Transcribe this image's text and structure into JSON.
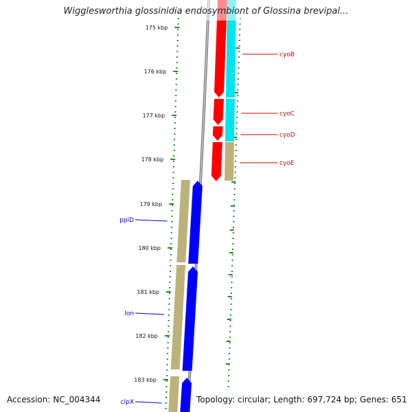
{
  "title": "Wigglesworthia glossinidia endosymbiont of Glossina brevipal...",
  "footer": {
    "accession": "Accession: NC_004344",
    "topology": "Topology: circular; Length: 697,724 bp; Genes: 651"
  },
  "colors": {
    "forward_cds": "#ff0000",
    "reverse_cds": "#0000ff",
    "forward_track": "#00e5ee",
    "gene_feature": "#bdb27a",
    "backbone": "#7f7f7f",
    "ticks": "#228b22",
    "forward_label": "#cc0000",
    "reverse_label": "#0000cc"
  },
  "ticks": [
    "175 kbp",
    "176 kbp",
    "177 kbp",
    "178 kbp",
    "179 kbp",
    "180 kbp",
    "181 kbp",
    "182 kbp",
    "183 kbp"
  ],
  "forward_genes": [
    {
      "name": "cyoB"
    },
    {
      "name": "cyoC"
    },
    {
      "name": "cyoD"
    },
    {
      "name": "cyoE"
    }
  ],
  "reverse_genes": [
    {
      "name": "ppiD"
    },
    {
      "name": "lon"
    },
    {
      "name": "clpX"
    }
  ]
}
